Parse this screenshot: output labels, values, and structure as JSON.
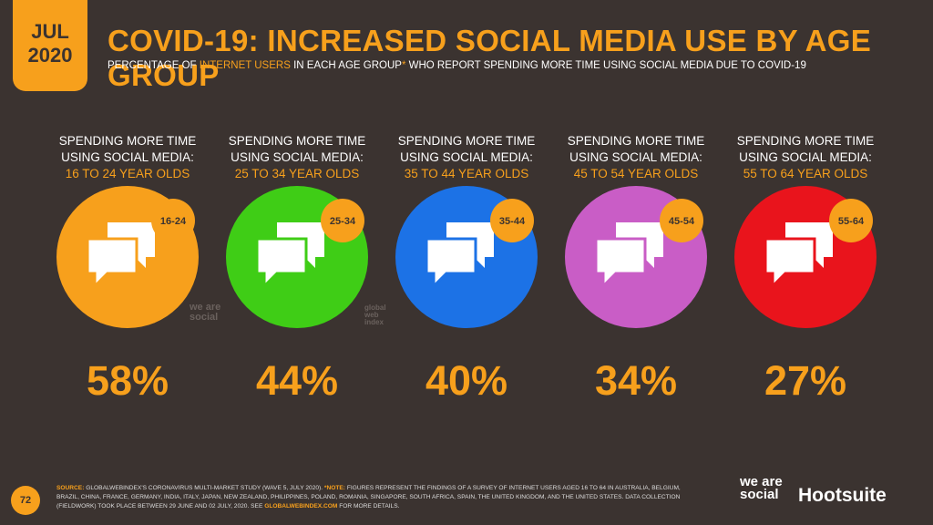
{
  "header": {
    "date_month": "JUL",
    "date_year": "2020",
    "title": "COVID-19: INCREASED SOCIAL MEDIA USE BY AGE GROUP",
    "subtitle": [
      "PERCENTAGE OF",
      "INTERNET USERS",
      "IN EACH AGE GROUP",
      "*",
      "WHO REPORT SPENDING MORE TIME USING SOCIAL MEDIA DUE TO COVID-19"
    ]
  },
  "items": [
    {
      "line1": "SPENDING MORE TIME",
      "line2": "USING SOCIAL MEDIA:",
      "age_label": "16 TO 24 YEAR OLDS",
      "badge": "16-24",
      "value": "58%",
      "color": "#f7a01c"
    },
    {
      "line1": "SPENDING MORE TIME",
      "line2": "USING SOCIAL MEDIA:",
      "age_label": "25 TO 34 YEAR OLDS",
      "badge": "25-34",
      "value": "44%",
      "color": "#3fcd16"
    },
    {
      "line1": "SPENDING MORE TIME",
      "line2": "USING SOCIAL MEDIA:",
      "age_label": "35 TO 44 YEAR OLDS",
      "badge": "35-44",
      "value": "40%",
      "color": "#1c72e6"
    },
    {
      "line1": "SPENDING MORE TIME",
      "line2": "USING SOCIAL MEDIA:",
      "age_label": "45 TO 54 YEAR OLDS",
      "badge": "45-54",
      "value": "34%",
      "color": "#c95dc6"
    },
    {
      "line1": "SPENDING MORE TIME",
      "line2": "USING SOCIAL MEDIA:",
      "age_label": "55 TO 64 YEAR OLDS",
      "badge": "55-64",
      "value": "27%",
      "color": "#e9141c"
    }
  ],
  "watermarks": {
    "we_are_social": "we are social",
    "gwi": "global web index"
  },
  "footer": {
    "page": "72",
    "source_label": "SOURCE:",
    "source_text": "GLOBALWEBINDEX'S CORONAVIRUS MULTI-MARKET STUDY (WAVE 5, JULY 2020).",
    "note_label": "*NOTE:",
    "note_text": "FIGURES REPRESENT THE FINDINGS OF A SURVEY OF INTERNET USERS AGED 16 TO 64 IN AUSTRALIA, BELGIUM, BRAZIL, CHINA, FRANCE, GERMANY, INDIA, ITALY, JAPAN, NEW ZEALAND, PHILIPPINES, POLAND, ROMANIA, SINGAPORE, SOUTH AFRICA, SPAIN, THE UNITED KINGDOM, AND THE UNITED STATES. DATA COLLECTION (FIELDWORK) TOOK PLACE BETWEEN 29 JUNE AND 02 JULY, 2020. SEE",
    "link": "GLOBALWEBINDEX.COM",
    "tail": "FOR MORE DETAILS.",
    "logo_1": "we are social",
    "logo_2": "Hootsuite"
  }
}
